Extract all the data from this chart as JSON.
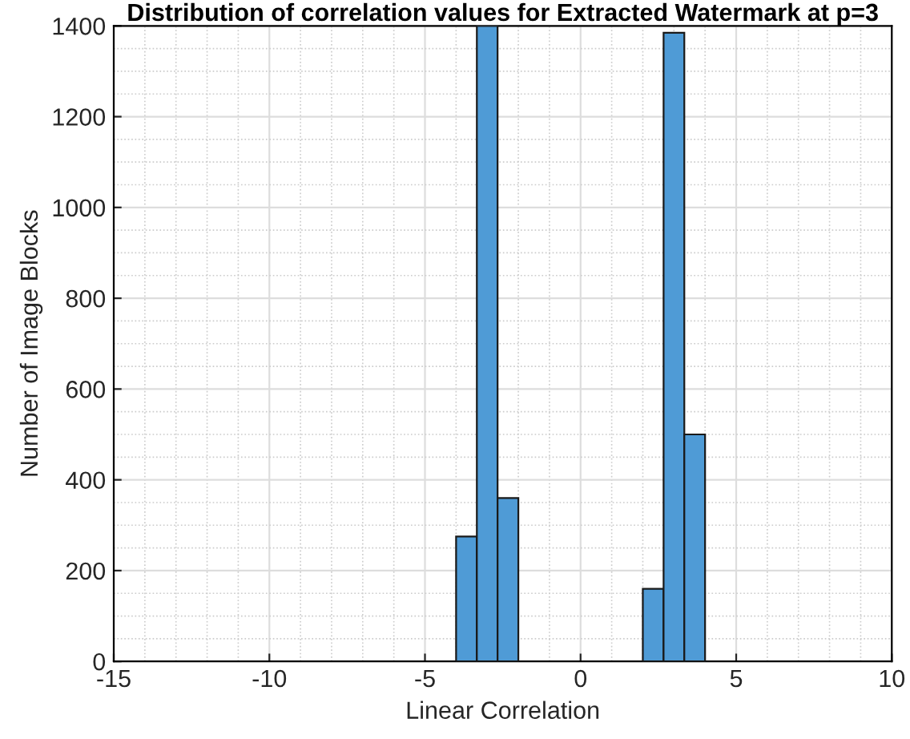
{
  "chart_data": {
    "type": "histogram",
    "title": "Distribution of correlation values for Extracted Watermark at p=3",
    "xlabel": "Linear Correlation",
    "ylabel": "Number of Image Blocks",
    "bins": [
      -4,
      -3.333,
      -2.667,
      -2,
      -1.333,
      -0.667,
      0,
      0.667,
      1.333,
      2,
      2.667,
      3.333,
      4
    ],
    "values": [
      275,
      1400,
      360,
      0,
      0,
      0,
      0,
      0,
      0,
      160,
      1385,
      500
    ],
    "color": "#4f9bd6",
    "xlim": [
      -15,
      10
    ],
    "xticks": [
      -15,
      -10,
      -5,
      0,
      5,
      10
    ],
    "ylim": [
      0,
      1400
    ],
    "yticks": [
      0,
      200,
      400,
      600,
      800,
      1000,
      1200,
      1400
    ],
    "grid": true
  }
}
